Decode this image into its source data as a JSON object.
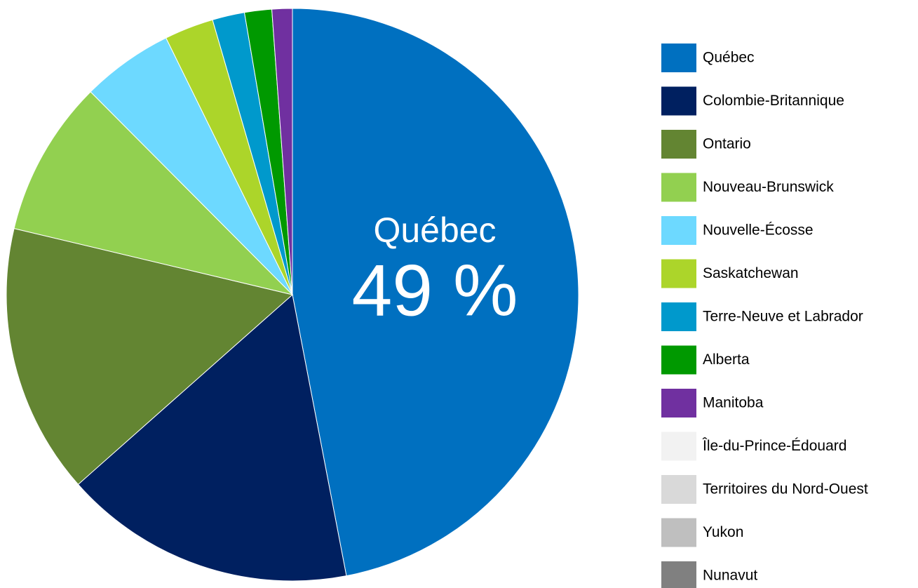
{
  "chart_data": {
    "type": "pie",
    "categories": [
      "Québec",
      "Colombie-Britannique",
      "Ontario",
      "Nouveau-Brunswick",
      "Nouvelle-Écosse",
      "Saskatchewan",
      "Terre-Neuve et Labrador",
      "Alberta",
      "Manitoba",
      "Île-du-Prince-Édouard",
      "Territoires du Nord-Ouest",
      "Yukon",
      "Nunavut"
    ],
    "values": [
      49,
      17.2,
      15.9,
      9.2,
      5.4,
      2.9,
      1.9,
      1.6,
      1.2,
      0,
      0,
      0,
      0
    ],
    "value_labels": [
      "49 %",
      null,
      null,
      null,
      null,
      null,
      null,
      null,
      null,
      null,
      null,
      null,
      null
    ],
    "colors": [
      "#0070c0",
      "#002060",
      "#638532",
      "#92d050",
      "#6dd9ff",
      "#acd52a",
      "#0099cc",
      "#009900",
      "#7030a0",
      "#f2f2f2",
      "#d9d9d9",
      "#bfbfbf",
      "#808080"
    ],
    "legend": "right"
  }
}
